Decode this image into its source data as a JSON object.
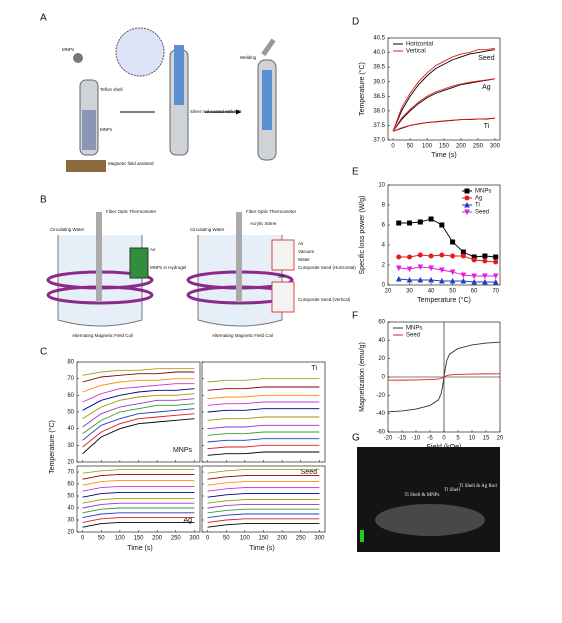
{
  "panel_labels": [
    "A",
    "B",
    "C",
    "D",
    "E",
    "F",
    "G"
  ],
  "panel_a": {
    "texts": [
      "MNPs",
      "Teflon shell",
      "MNPs",
      "Magnetic field assisted",
      "Silver rod coated with PEI",
      "Welding"
    ]
  },
  "panel_b": {
    "texts": [
      "Circulating Water",
      "Fiber Optic Thermometer",
      "Air",
      "MNPs in Hydrogel",
      "Alternating Magnetic Field Coil",
      "Circulating Water",
      "Fiber Optic Thermometer",
      "Acrylic Stirrer",
      "Air",
      "Vacuum",
      "Water",
      "Composite Seed (Horizontal)",
      "OR",
      "Composite Seed (Vertical)",
      "Alternating Magnetic Field Coil"
    ]
  },
  "panel_c": {
    "ylabel": "Temperature (°C)",
    "xlabel": "Time (s)"
  },
  "panel_g": {
    "texts": [
      "Ti Shell & MNPs",
      "Ti Shell",
      "Ti Shell & Ag Rod"
    ]
  },
  "chart_data": [
    {
      "type": "line",
      "label": "MNPs",
      "x": [
        0,
        50,
        100,
        150,
        200,
        250,
        300
      ],
      "xlim": [
        -15,
        315
      ],
      "xticks": [
        0,
        50,
        100,
        150,
        200,
        250,
        300
      ],
      "xtick_labels": false,
      "ylim": [
        20,
        80
      ],
      "yticks": [
        20,
        30,
        40,
        50,
        60,
        70,
        80
      ],
      "ytick_labels": true,
      "series": [
        {
          "color": "#000000",
          "values": [
            25,
            35,
            40,
            43,
            44,
            45,
            46
          ]
        },
        {
          "color": "#e41a1c",
          "values": [
            29,
            38,
            43,
            46,
            47,
            48,
            49
          ]
        },
        {
          "color": "#1f3fbf",
          "values": [
            33,
            42,
            46,
            49,
            50,
            51,
            52
          ]
        },
        {
          "color": "#2ca02c",
          "values": [
            37,
            45,
            50,
            52,
            54,
            54,
            55
          ]
        },
        {
          "color": "#9b30c9",
          "values": [
            41,
            49,
            53,
            55,
            57,
            57,
            58
          ]
        },
        {
          "color": "#9a9a00",
          "values": [
            46,
            53,
            57,
            59,
            60,
            60,
            61
          ]
        },
        {
          "color": "#00008b",
          "values": [
            51,
            57,
            60,
            62,
            63,
            63,
            64
          ]
        },
        {
          "color": "#d030d0",
          "values": [
            56,
            61,
            64,
            65,
            66,
            67,
            67
          ]
        },
        {
          "color": "#ff8c00",
          "values": [
            62,
            66,
            68,
            69,
            69,
            70,
            70
          ]
        },
        {
          "color": "#8b0000",
          "values": [
            68,
            71,
            72,
            73,
            73,
            74,
            74
          ]
        },
        {
          "color": "#a0a020",
          "values": [
            72,
            74,
            75,
            75,
            76,
            76,
            76
          ]
        }
      ]
    },
    {
      "type": "line",
      "label": "Ti",
      "x": [
        0,
        50,
        100,
        150,
        200,
        250,
        300
      ],
      "xlim": [
        -15,
        315
      ],
      "xticks": [
        0,
        50,
        100,
        150,
        200,
        250,
        300
      ],
      "xtick_labels": false,
      "ylim": [
        20,
        80
      ],
      "yticks": [
        20,
        30,
        40,
        50,
        60,
        70,
        80
      ],
      "ytick_labels": false,
      "series": [
        {
          "color": "#000000",
          "values": [
            24,
            25,
            25,
            26,
            26,
            26,
            26
          ]
        },
        {
          "color": "#e41a1c",
          "values": [
            28,
            29,
            29,
            30,
            30,
            30,
            30
          ]
        },
        {
          "color": "#1f3fbf",
          "values": [
            32,
            33,
            33,
            34,
            34,
            34,
            34
          ]
        },
        {
          "color": "#2ca02c",
          "values": [
            36,
            37,
            37,
            38,
            38,
            38,
            38
          ]
        },
        {
          "color": "#9b30c9",
          "values": [
            40,
            41,
            41,
            42,
            42,
            42,
            42
          ]
        },
        {
          "color": "#9a9a00",
          "values": [
            45,
            46,
            46,
            47,
            47,
            47,
            47
          ]
        },
        {
          "color": "#00008b",
          "values": [
            50,
            51,
            51,
            52,
            52,
            52,
            52
          ]
        },
        {
          "color": "#d030d0",
          "values": [
            54,
            55,
            55,
            56,
            56,
            56,
            56
          ]
        },
        {
          "color": "#ff8c00",
          "values": [
            58,
            59,
            59,
            60,
            60,
            60,
            60
          ]
        },
        {
          "color": "#8b0000",
          "values": [
            63,
            64,
            64,
            65,
            65,
            65,
            65
          ]
        },
        {
          "color": "#a0a020",
          "values": [
            68,
            69,
            69,
            70,
            70,
            70,
            70
          ]
        }
      ]
    },
    {
      "type": "line",
      "label": "Ag",
      "x": [
        0,
        50,
        100,
        150,
        200,
        250,
        300
      ],
      "xlim": [
        -15,
        315
      ],
      "xticks": [
        0,
        50,
        100,
        150,
        200,
        250,
        300
      ],
      "xtick_labels": true,
      "ylim": [
        20,
        75
      ],
      "yticks": [
        20,
        30,
        40,
        50,
        60,
        70
      ],
      "ytick_labels": true,
      "series": [
        {
          "color": "#000000",
          "values": [
            24,
            27,
            28,
            28,
            28,
            28,
            28
          ]
        },
        {
          "color": "#e41a1c",
          "values": [
            28,
            31,
            32,
            32,
            32,
            32,
            32
          ]
        },
        {
          "color": "#1f3fbf",
          "values": [
            32,
            35,
            36,
            36,
            36,
            36,
            36
          ]
        },
        {
          "color": "#2ca02c",
          "values": [
            36,
            39,
            40,
            40,
            40,
            40,
            40
          ]
        },
        {
          "color": "#9b30c9",
          "values": [
            40,
            43,
            44,
            44,
            44,
            44,
            44
          ]
        },
        {
          "color": "#9a9a00",
          "values": [
            44,
            47,
            48,
            48,
            48,
            48,
            48
          ]
        },
        {
          "color": "#00008b",
          "values": [
            49,
            52,
            53,
            53,
            53,
            53,
            53
          ]
        },
        {
          "color": "#d030d0",
          "values": [
            54,
            57,
            58,
            58,
            58,
            58,
            58
          ]
        },
        {
          "color": "#ff8c00",
          "values": [
            59,
            62,
            63,
            63,
            63,
            63,
            63
          ]
        },
        {
          "color": "#8b0000",
          "values": [
            64,
            67,
            68,
            68,
            68,
            68,
            68
          ]
        },
        {
          "color": "#a0a020",
          "values": [
            69,
            71,
            72,
            72,
            72,
            72,
            72
          ]
        }
      ]
    },
    {
      "type": "line",
      "label": "Seed",
      "x": [
        0,
        50,
        100,
        150,
        200,
        250,
        300
      ],
      "xlim": [
        -15,
        315
      ],
      "xticks": [
        0,
        50,
        100,
        150,
        200,
        250,
        300
      ],
      "xtick_labels": true,
      "ylim": [
        20,
        75
      ],
      "yticks": [
        20,
        30,
        40,
        50,
        60,
        70
      ],
      "ytick_labels": false,
      "series": [
        {
          "color": "#000000",
          "values": [
            24,
            26,
            27,
            27,
            27,
            27,
            27
          ]
        },
        {
          "color": "#e41a1c",
          "values": [
            28,
            30,
            31,
            31,
            31,
            31,
            31
          ]
        },
        {
          "color": "#1f3fbf",
          "values": [
            32,
            34,
            35,
            35,
            35,
            35,
            35
          ]
        },
        {
          "color": "#2ca02c",
          "values": [
            36,
            38,
            39,
            39,
            39,
            39,
            39
          ]
        },
        {
          "color": "#9b30c9",
          "values": [
            40,
            42,
            43,
            43,
            43,
            43,
            43
          ]
        },
        {
          "color": "#9a9a00",
          "values": [
            44,
            46,
            47,
            47,
            47,
            47,
            47
          ]
        },
        {
          "color": "#00008b",
          "values": [
            49,
            51,
            52,
            52,
            52,
            52,
            52
          ]
        },
        {
          "color": "#d030d0",
          "values": [
            54,
            56,
            57,
            57,
            57,
            57,
            57
          ]
        },
        {
          "color": "#ff8c00",
          "values": [
            59,
            61,
            62,
            62,
            62,
            62,
            62
          ]
        },
        {
          "color": "#8b0000",
          "values": [
            64,
            66,
            67,
            67,
            67,
            67,
            67
          ]
        },
        {
          "color": "#a0a020",
          "values": [
            69,
            71,
            72,
            72,
            72,
            72,
            72
          ]
        }
      ]
    },
    {
      "type": "line",
      "xlabel": "Time (s)",
      "ylabel": "Temperature (°C)",
      "legend": "upper left",
      "x": [
        0,
        25,
        50,
        75,
        100,
        125,
        150,
        175,
        200,
        225,
        250,
        275,
        300
      ],
      "xlim": [
        -15,
        315
      ],
      "xticks": [
        0,
        50,
        100,
        150,
        200,
        250,
        300
      ],
      "ylim": [
        37,
        40.5
      ],
      "yticks": [
        {
          "value": 37,
          "label": "37.0"
        },
        37.5,
        {
          "value": 38,
          "label": "38.0"
        },
        38.5,
        {
          "value": 39,
          "label": "39.0"
        },
        39.5,
        {
          "value": 40,
          "label": "40.0"
        },
        40.5
      ],
      "curve_labels": [
        "Seed",
        "Ag",
        "Ti"
      ],
      "series": [
        {
          "name": "Horizontal",
          "color": "#000000",
          "values": [
            [
              37.3,
              38.0,
              38.5,
              38.9,
              39.2,
              39.45,
              39.6,
              39.75,
              39.85,
              39.95,
              40.0,
              40.05,
              40.1
            ],
            [
              37.3,
              37.7,
              38.0,
              38.25,
              38.45,
              38.6,
              38.7,
              38.8,
              38.9,
              38.95,
              39.0,
              39.05,
              39.1
            ],
            [
              37.3,
              37.4,
              37.5,
              37.55,
              37.6,
              37.62,
              37.65,
              37.67,
              37.7,
              37.7,
              37.72,
              37.72,
              37.75
            ]
          ]
        },
        {
          "name": "Vertical",
          "color": "#e41a1c",
          "values": [
            [
              37.3,
              38.1,
              38.6,
              39.0,
              39.3,
              39.55,
              39.7,
              39.85,
              39.95,
              40.0,
              40.1,
              40.1,
              40.15
            ],
            [
              37.3,
              37.75,
              38.05,
              38.3,
              38.5,
              38.65,
              38.75,
              38.85,
              38.92,
              38.98,
              39.02,
              39.06,
              39.1
            ],
            [
              37.3,
              37.42,
              37.5,
              37.56,
              37.6,
              37.63,
              37.66,
              37.68,
              37.7,
              37.71,
              37.72,
              37.73,
              37.75
            ]
          ]
        }
      ]
    },
    {
      "type": "line",
      "xlabel": "Temperature (°C)",
      "ylabel": "Specific loss power (W/g)",
      "legend": "upper right",
      "x": [
        25,
        30,
        35,
        40,
        45,
        50,
        55,
        60,
        65,
        70
      ],
      "xlim": [
        20,
        72
      ],
      "xticks": [
        20,
        30,
        40,
        50,
        60,
        70
      ],
      "ylim": [
        0,
        10
      ],
      "yticks": [
        0,
        2,
        4,
        6,
        8,
        10
      ],
      "series": [
        {
          "name": "MNPs",
          "color": "#000000",
          "marker": "square",
          "values": [
            6.2,
            6.2,
            6.3,
            6.6,
            6.0,
            4.3,
            3.3,
            2.8,
            2.9,
            2.8
          ]
        },
        {
          "name": "Ag",
          "color": "#e41a1c",
          "marker": "circle",
          "values": [
            2.8,
            2.8,
            3.0,
            2.9,
            3.0,
            2.9,
            2.9,
            2.5,
            2.4,
            2.3
          ]
        },
        {
          "name": "Ti",
          "color": "#1f3fbf",
          "marker": "triangle",
          "values": [
            0.6,
            0.5,
            0.5,
            0.5,
            0.4,
            0.4,
            0.4,
            0.3,
            0.3,
            0.3
          ]
        },
        {
          "name": "Seed",
          "color": "#e020e0",
          "marker": "triangle-down",
          "values": [
            1.7,
            1.6,
            1.8,
            1.7,
            1.5,
            1.3,
            1.0,
            0.9,
            0.9,
            0.9
          ]
        }
      ]
    },
    {
      "type": "line",
      "xlabel": "Field (kOe)",
      "ylabel": "Magnetization (emu/g)",
      "legend": "upper left",
      "x": [
        -20,
        -15,
        -10,
        -5,
        -2,
        -1,
        -0.5,
        0,
        0.5,
        1,
        2,
        5,
        10,
        15,
        20
      ],
      "xlim": [
        -20,
        20
      ],
      "xticks": [
        -20,
        -15,
        -10,
        -5,
        0,
        5,
        10,
        15,
        20
      ],
      "ylim": [
        -60,
        60
      ],
      "yticks": [
        -60,
        -40,
        -20,
        0,
        20,
        40,
        60
      ],
      "series": [
        {
          "name": "MNPs",
          "color": "#333333",
          "values": [
            -38,
            -37,
            -35,
            -31,
            -25,
            -18,
            -10,
            0,
            10,
            18,
            25,
            31,
            35,
            37,
            38
          ]
        },
        {
          "name": "Seed",
          "color": "#e41a1c",
          "values": [
            -3.5,
            -3.4,
            -3.2,
            -2.8,
            -2.2,
            -1.5,
            -0.8,
            0,
            0.8,
            1.5,
            2.2,
            2.8,
            3.2,
            3.4,
            3.5
          ]
        }
      ]
    }
  ]
}
